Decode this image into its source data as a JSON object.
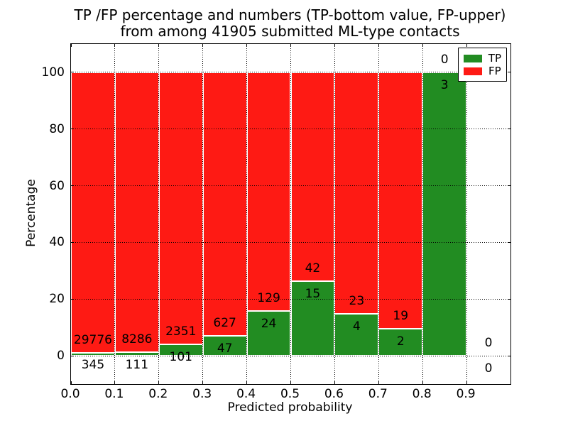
{
  "title": {
    "line1": "TP /FP percentage and numbers (TP-bottom value, FP-upper)",
    "line2": "from among 41905 submitted ML-type contacts"
  },
  "axes": {
    "xlabel": "Predicted probability",
    "ylabel": "Percentage"
  },
  "legend": [
    {
      "label": "TP",
      "color": "#228c22"
    },
    {
      "label": "FP",
      "color": "#fe1a14"
    }
  ],
  "colors": {
    "tp_green": "#228c22",
    "fp_red": "#fe1a14",
    "text": "#000000",
    "background": "#ffffff",
    "bar_edge": "#ffffff",
    "grid": "#000000"
  },
  "chart_data": {
    "type": "bar",
    "stacked": true,
    "normalized": "each drawn bar stack sums to 100%",
    "title": "TP /FP percentage and numbers (TP-bottom value, FP-upper) from among 41905 submitted ML-type contacts",
    "xlabel": "Predicted probability",
    "ylabel": "Percentage",
    "xlim": [
      0.0,
      1.0
    ],
    "ylim": [
      -10,
      110
    ],
    "xticks": [
      "0.0",
      "0.1",
      "0.2",
      "0.3",
      "0.4",
      "0.5",
      "0.6",
      "0.7",
      "0.8",
      "0.9"
    ],
    "yticks": [
      "0",
      "20",
      "40",
      "60",
      "80",
      "100"
    ],
    "grid": "dotted black, both axes, drawn above bars",
    "legend_position": "upper right",
    "total_contacts": 41905,
    "categories": [
      "0.0-0.1",
      "0.1-0.2",
      "0.2-0.3",
      "0.3-0.4",
      "0.4-0.5",
      "0.5-0.6",
      "0.6-0.7",
      "0.7-0.8",
      "0.8-0.9",
      "0.9-1.0"
    ],
    "bins": [
      {
        "range": [
          0.0,
          0.1
        ],
        "tp": 345,
        "fp": 29776,
        "tp_percent": 1.15
      },
      {
        "range": [
          0.1,
          0.2
        ],
        "tp": 111,
        "fp": 8286,
        "tp_percent": 1.32
      },
      {
        "range": [
          0.2,
          0.3
        ],
        "tp": 101,
        "fp": 2351,
        "tp_percent": 4.12
      },
      {
        "range": [
          0.3,
          0.4
        ],
        "tp": 47,
        "fp": 627,
        "tp_percent": 6.97
      },
      {
        "range": [
          0.4,
          0.5
        ],
        "tp": 24,
        "fp": 129,
        "tp_percent": 15.69
      },
      {
        "range": [
          0.5,
          0.6
        ],
        "tp": 15,
        "fp": 42,
        "tp_percent": 26.32
      },
      {
        "range": [
          0.6,
          0.7
        ],
        "tp": 4,
        "fp": 23,
        "tp_percent": 14.81
      },
      {
        "range": [
          0.7,
          0.8
        ],
        "tp": 2,
        "fp": 19,
        "tp_percent": 9.52
      },
      {
        "range": [
          0.8,
          0.9
        ],
        "tp": 3,
        "fp": 0,
        "tp_percent": 100.0
      },
      {
        "range": [
          0.9,
          1.0
        ],
        "tp": 0,
        "fp": 0,
        "tp_percent": 0
      }
    ],
    "series": [
      {
        "name": "TP",
        "color": "#228c22",
        "values": [
          345,
          111,
          101,
          47,
          24,
          15,
          4,
          2,
          3,
          0
        ]
      },
      {
        "name": "FP",
        "color": "#fe1a14",
        "values": [
          29776,
          8286,
          2351,
          627,
          129,
          42,
          23,
          19,
          0,
          0
        ]
      }
    ]
  }
}
